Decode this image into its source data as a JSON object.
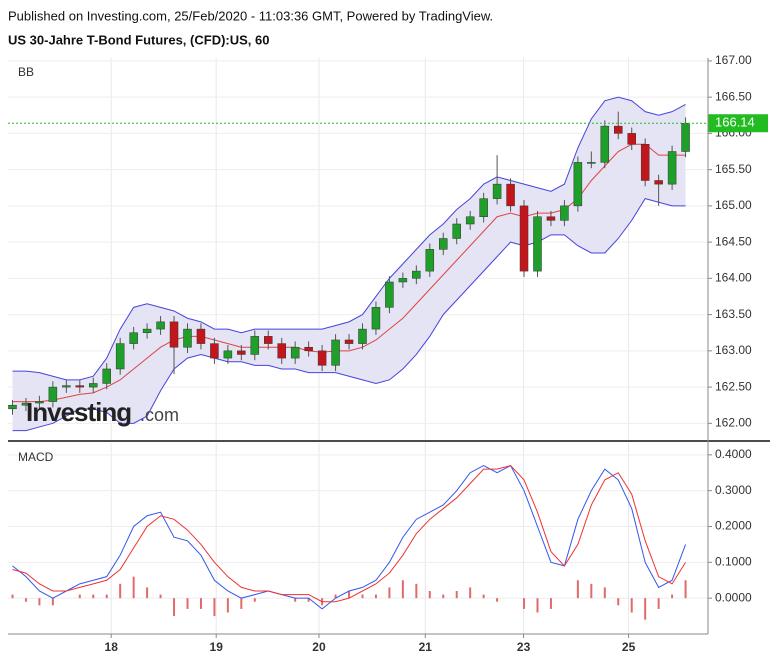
{
  "header": {
    "line1": "Published on Investing.com, 25/Feb/2020 - 11:03:36 GMT, Powered by TradingView.",
    "line2": "US 30-Jahre T-Bond Futures, (CFD):US, 60"
  },
  "watermark": {
    "brand": "Investing",
    "suffix": ".com"
  },
  "chart_data": [
    {
      "type": "candlestick",
      "label": "BB",
      "up_color": "#1f9e2a",
      "down_color": "#c3161c",
      "band_fill": "#e4e4f4",
      "grid": true,
      "xlim": [
        -1,
        155
      ],
      "ylim": [
        161.77,
        167.04
      ],
      "yticks": [
        {
          "value": 162,
          "label": "162.00"
        },
        {
          "value": 162.5,
          "label": "162.50"
        },
        {
          "value": 163,
          "label": "163.00"
        },
        {
          "value": 163.5,
          "label": "163.50"
        },
        {
          "value": 164,
          "label": "164.00"
        },
        {
          "value": 164.5,
          "label": "164.50"
        },
        {
          "value": 165,
          "label": "165.00"
        },
        {
          "value": 165.5,
          "label": "165.50"
        },
        {
          "value": 166,
          "label": "166.00"
        },
        {
          "value": 166.5,
          "label": "166.50"
        },
        {
          "value": 167,
          "label": "167.00"
        }
      ],
      "last_price": 166.14,
      "last_price_color": "#22bb22",
      "x": [
        0,
        3,
        6,
        9,
        12,
        15,
        18,
        21,
        24,
        27,
        30,
        33,
        36,
        39,
        42,
        45,
        48,
        51,
        54,
        57,
        60,
        63,
        66,
        69,
        72,
        75,
        78,
        81,
        84,
        87,
        90,
        93,
        96,
        99,
        102,
        105,
        108,
        111,
        114,
        117,
        120,
        123,
        126,
        129,
        132,
        135,
        138,
        141,
        144,
        147,
        150
      ],
      "open": [
        162.2,
        162.25,
        162.28,
        162.3,
        162.5,
        162.52,
        162.5,
        162.55,
        162.75,
        163.1,
        163.25,
        163.3,
        163.4,
        163.05,
        163.3,
        163.1,
        162.9,
        163.0,
        162.95,
        163.2,
        163.1,
        162.9,
        163.05,
        163.0,
        162.8,
        163.15,
        163.1,
        163.3,
        163.6,
        163.95,
        164.0,
        164.1,
        164.4,
        164.55,
        164.75,
        164.85,
        165.1,
        165.3,
        165.0,
        164.1,
        164.85,
        164.8,
        165.0,
        165.6,
        165.6,
        166.1,
        166.0,
        165.85,
        165.35,
        165.3,
        165.75
      ],
      "high": [
        162.32,
        162.35,
        162.38,
        162.58,
        162.6,
        162.6,
        162.63,
        162.83,
        163.18,
        163.33,
        163.38,
        163.48,
        163.48,
        163.38,
        163.38,
        163.18,
        163.08,
        163.08,
        163.28,
        163.28,
        163.18,
        163.13,
        163.13,
        163.08,
        163.23,
        163.23,
        163.38,
        163.68,
        164.03,
        164.08,
        164.18,
        164.48,
        164.63,
        164.83,
        164.93,
        165.18,
        165.7,
        165.38,
        165.08,
        164.93,
        164.93,
        165.08,
        165.68,
        165.75,
        166.18,
        166.3,
        166.08,
        165.93,
        165.43,
        165.83,
        166.22
      ],
      "low": [
        162.12,
        162.17,
        162.2,
        162.22,
        162.42,
        162.42,
        162.42,
        162.47,
        162.67,
        163.02,
        163.17,
        163.22,
        162.68,
        162.97,
        163.02,
        162.82,
        162.82,
        162.87,
        162.87,
        163.02,
        162.82,
        162.82,
        162.92,
        162.72,
        162.72,
        163.02,
        163.02,
        163.22,
        163.52,
        163.87,
        163.92,
        164.02,
        164.32,
        164.47,
        164.67,
        164.77,
        165.02,
        164.92,
        164.02,
        164.02,
        164.72,
        164.72,
        164.92,
        165.52,
        165.52,
        165.92,
        165.77,
        165.27,
        165.0,
        165.22,
        165.67
      ],
      "close": [
        162.25,
        162.28,
        162.3,
        162.5,
        162.52,
        162.5,
        162.55,
        162.75,
        163.1,
        163.25,
        163.3,
        163.4,
        163.05,
        163.3,
        163.1,
        162.9,
        163.0,
        162.95,
        163.2,
        163.1,
        162.9,
        163.05,
        163.0,
        162.8,
        163.15,
        163.1,
        163.3,
        163.6,
        163.95,
        164.0,
        164.1,
        164.4,
        164.55,
        164.75,
        164.85,
        165.1,
        165.3,
        165.0,
        164.1,
        164.85,
        164.8,
        165.0,
        165.6,
        165.6,
        166.1,
        166.0,
        165.85,
        165.35,
        165.3,
        165.75,
        166.14
      ],
      "series": [
        {
          "color": "#4444dd",
          "values": [
            162.72,
            162.72,
            162.7,
            162.65,
            162.6,
            162.6,
            162.65,
            162.9,
            163.3,
            163.6,
            163.65,
            163.6,
            163.55,
            163.45,
            163.4,
            163.3,
            163.3,
            163.25,
            163.3,
            163.3,
            163.3,
            163.3,
            163.3,
            163.3,
            163.35,
            163.4,
            163.5,
            163.75,
            164.0,
            164.2,
            164.4,
            164.6,
            164.75,
            164.95,
            165.1,
            165.3,
            165.4,
            165.35,
            165.3,
            165.25,
            165.2,
            165.3,
            165.8,
            166.2,
            166.45,
            166.5,
            166.45,
            166.3,
            166.25,
            166.3,
            166.4
          ]
        },
        {
          "color": "#e04444",
          "values": [
            162.3,
            162.3,
            162.3,
            162.32,
            162.36,
            162.4,
            162.42,
            162.5,
            162.6,
            162.75,
            162.9,
            163.05,
            163.15,
            163.2,
            163.2,
            163.15,
            163.1,
            163.05,
            163.05,
            163.05,
            163.05,
            163.05,
            163.0,
            162.98,
            163.0,
            163.0,
            163.05,
            163.15,
            163.3,
            163.45,
            163.65,
            163.85,
            164.05,
            164.25,
            164.45,
            164.65,
            164.85,
            164.9,
            164.85,
            164.9,
            164.9,
            164.95,
            165.1,
            165.35,
            165.55,
            165.75,
            165.85,
            165.85,
            165.7,
            165.7,
            165.7
          ]
        },
        {
          "color": "#4444dd",
          "values": [
            161.9,
            161.9,
            161.95,
            162.0,
            162.1,
            162.2,
            162.2,
            162.15,
            162.0,
            162.0,
            162.1,
            162.45,
            162.75,
            162.9,
            162.95,
            162.9,
            162.85,
            162.85,
            162.8,
            162.8,
            162.75,
            162.75,
            162.7,
            162.7,
            162.7,
            162.65,
            162.6,
            162.55,
            162.6,
            162.75,
            162.95,
            163.2,
            163.5,
            163.7,
            163.9,
            164.1,
            164.3,
            164.5,
            164.45,
            164.5,
            164.6,
            164.6,
            164.45,
            164.35,
            164.35,
            164.55,
            164.8,
            165.1,
            165.05,
            165.0,
            165.0
          ]
        }
      ]
    },
    {
      "type": "macd",
      "label": "MACD",
      "grid": true,
      "xlim": [
        -1,
        155
      ],
      "ylim": [
        -0.1,
        0.433
      ],
      "yticks": [
        {
          "value": 0,
          "label": "0.0000"
        },
        {
          "value": 0.1,
          "label": "0.1000"
        },
        {
          "value": 0.2,
          "label": "0.2000"
        },
        {
          "value": 0.3,
          "label": "0.3000"
        },
        {
          "value": 0.4,
          "label": "0.4000"
        }
      ],
      "xticks": [
        {
          "value": 22,
          "label": "18"
        },
        {
          "value": 45.4,
          "label": "19"
        },
        {
          "value": 68.3,
          "label": "20"
        },
        {
          "value": 92,
          "label": "21"
        },
        {
          "value": 113.9,
          "label": "23"
        },
        {
          "value": 137.3,
          "label": "25"
        }
      ],
      "x": [
        0,
        3,
        6,
        9,
        12,
        15,
        18,
        21,
        24,
        27,
        30,
        33,
        36,
        39,
        42,
        45,
        48,
        51,
        54,
        57,
        60,
        63,
        66,
        69,
        72,
        75,
        78,
        81,
        84,
        87,
        90,
        93,
        96,
        99,
        102,
        105,
        108,
        111,
        114,
        117,
        120,
        123,
        126,
        129,
        132,
        135,
        138,
        141,
        144,
        147,
        150
      ],
      "series": [
        {
          "kind": "bar",
          "color": "#e06a6a",
          "values": [
            0.01,
            -0.01,
            -0.02,
            -0.02,
            0.0,
            0.01,
            0.01,
            0.01,
            0.04,
            0.06,
            0.03,
            0.01,
            -0.05,
            -0.03,
            -0.03,
            -0.05,
            -0.04,
            -0.03,
            -0.01,
            0.0,
            0.0,
            -0.01,
            -0.01,
            -0.02,
            0.01,
            0.02,
            0.01,
            0.01,
            0.03,
            0.05,
            0.04,
            0.02,
            0.01,
            0.02,
            0.03,
            0.01,
            -0.01,
            0.0,
            -0.03,
            -0.04,
            -0.03,
            0.0,
            0.05,
            0.04,
            0.03,
            -0.02,
            -0.04,
            -0.06,
            -0.03,
            0.01,
            0.05
          ]
        },
        {
          "kind": "line",
          "color": "#3355ee",
          "values": [
            0.09,
            0.06,
            0.02,
            0.0,
            0.02,
            0.04,
            0.05,
            0.06,
            0.12,
            0.2,
            0.23,
            0.24,
            0.17,
            0.16,
            0.12,
            0.05,
            0.02,
            0.0,
            0.01,
            0.02,
            0.01,
            0.0,
            0.0,
            -0.03,
            0.0,
            0.02,
            0.03,
            0.05,
            0.1,
            0.17,
            0.22,
            0.24,
            0.26,
            0.3,
            0.35,
            0.37,
            0.35,
            0.37,
            0.3,
            0.2,
            0.1,
            0.09,
            0.22,
            0.3,
            0.36,
            0.33,
            0.25,
            0.1,
            0.03,
            0.05,
            0.15
          ]
        },
        {
          "kind": "line",
          "color": "#ee3333",
          "values": [
            0.08,
            0.07,
            0.04,
            0.02,
            0.02,
            0.03,
            0.04,
            0.05,
            0.08,
            0.14,
            0.2,
            0.23,
            0.22,
            0.19,
            0.15,
            0.1,
            0.06,
            0.03,
            0.02,
            0.02,
            0.01,
            0.01,
            0.01,
            -0.01,
            -0.01,
            0.0,
            0.02,
            0.04,
            0.07,
            0.12,
            0.18,
            0.22,
            0.25,
            0.28,
            0.32,
            0.36,
            0.36,
            0.37,
            0.33,
            0.24,
            0.13,
            0.09,
            0.15,
            0.26,
            0.33,
            0.35,
            0.29,
            0.16,
            0.06,
            0.04,
            0.1
          ]
        }
      ]
    }
  ]
}
